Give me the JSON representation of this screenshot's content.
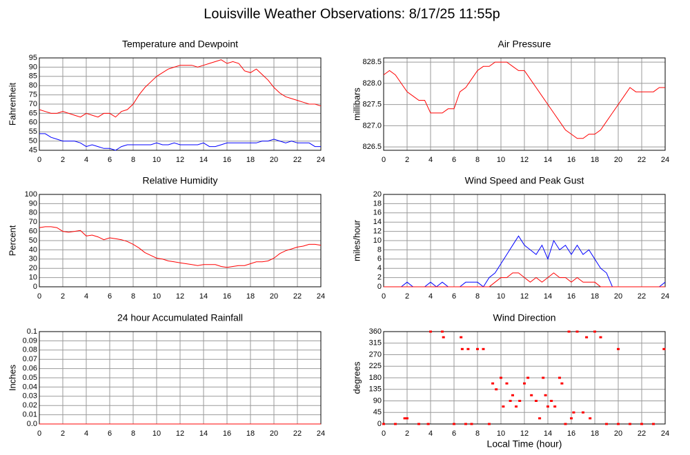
{
  "title": "Louisville Weather Observations: 8/17/25 11:55p",
  "x_label": "Local Time (hour)",
  "chart_data": [
    {
      "type": "line",
      "title": "Temperature and Dewpoint",
      "y_label": "Fahrenheit",
      "x": [
        0,
        0.5,
        1,
        1.5,
        2,
        2.5,
        3,
        3.5,
        4,
        4.5,
        5,
        5.5,
        6,
        6.5,
        7,
        7.5,
        8,
        8.5,
        9,
        9.5,
        10,
        10.5,
        11,
        11.5,
        12,
        12.5,
        13,
        13.5,
        14,
        14.5,
        15,
        15.5,
        16,
        16.5,
        17,
        17.5,
        18,
        18.5,
        19,
        19.5,
        20,
        20.5,
        21,
        21.5,
        22,
        22.5,
        23,
        23.5,
        24
      ],
      "series": [
        {
          "color": "#ff0000",
          "values": [
            67,
            66,
            65,
            65,
            66,
            65,
            64,
            63,
            65,
            64,
            63,
            65,
            65,
            63,
            66,
            67,
            70,
            75,
            79,
            82,
            85,
            87,
            89,
            90,
            91,
            91,
            91,
            90,
            91,
            92,
            93,
            94,
            92,
            93,
            92,
            88,
            87,
            89,
            86,
            83,
            79,
            76,
            74,
            73,
            72,
            71,
            70,
            70,
            69
          ]
        },
        {
          "color": "#0000ff",
          "values": [
            54,
            54,
            52,
            51,
            50,
            50,
            50,
            49,
            47,
            48,
            47,
            46,
            46,
            45,
            47,
            48,
            48,
            48,
            48,
            48,
            49,
            48,
            48,
            49,
            48,
            48,
            48,
            48,
            49,
            47,
            47,
            48,
            49,
            49,
            49,
            49,
            49,
            49,
            50,
            50,
            51,
            50,
            49,
            50,
            49,
            49,
            49,
            47,
            47
          ]
        }
      ],
      "xlim": [
        0,
        24
      ],
      "xticks": [
        0,
        2,
        4,
        6,
        8,
        10,
        12,
        14,
        16,
        18,
        20,
        22,
        24
      ],
      "ylim": [
        45,
        95
      ],
      "yticks": [
        45,
        50,
        55,
        60,
        65,
        70,
        75,
        80,
        85,
        90,
        95
      ],
      "grid": true
    },
    {
      "type": "line",
      "title": "Air Pressure",
      "y_label": "millibars",
      "x": [
        0,
        0.5,
        1,
        1.5,
        2,
        2.5,
        3,
        3.5,
        4,
        4.5,
        5,
        5.5,
        6,
        6.5,
        7,
        7.5,
        8,
        8.5,
        9,
        9.5,
        10,
        10.5,
        11,
        11.5,
        12,
        12.5,
        13,
        13.5,
        14,
        14.5,
        15,
        15.5,
        16,
        16.5,
        17,
        17.5,
        18,
        18.5,
        19,
        19.5,
        20,
        20.5,
        21,
        21.5,
        22,
        22.5,
        23,
        23.5,
        24
      ],
      "series": [
        {
          "color": "#ff0000",
          "values": [
            828.2,
            828.3,
            828.2,
            828.0,
            827.8,
            827.7,
            827.6,
            827.6,
            827.3,
            827.3,
            827.3,
            827.4,
            827.4,
            827.8,
            827.9,
            828.1,
            828.3,
            828.4,
            828.4,
            828.5,
            828.5,
            828.5,
            828.4,
            828.3,
            828.3,
            828.1,
            827.9,
            827.7,
            827.5,
            827.3,
            827.1,
            826.9,
            826.8,
            826.7,
            826.7,
            826.8,
            826.8,
            826.9,
            827.1,
            827.3,
            827.5,
            827.7,
            827.9,
            827.8,
            827.8,
            827.8,
            827.8,
            827.9,
            827.9
          ]
        }
      ],
      "xlim": [
        0,
        24
      ],
      "xticks": [
        0,
        2,
        4,
        6,
        8,
        10,
        12,
        14,
        16,
        18,
        20,
        22,
        24
      ],
      "ylim": [
        826.42,
        828.6
      ],
      "yticks": [
        826.5,
        {
          "value": 827,
          "label": "827.0"
        },
        827.5,
        {
          "value": 828,
          "label": "828.0"
        },
        828.5
      ],
      "grid": true
    },
    {
      "type": "line",
      "title": "Relative Humidity",
      "y_label": "Percent",
      "x": [
        0,
        0.5,
        1,
        1.5,
        2,
        2.5,
        3,
        3.5,
        4,
        4.5,
        5,
        5.5,
        6,
        6.5,
        7,
        7.5,
        8,
        8.5,
        9,
        9.5,
        10,
        10.5,
        11,
        11.5,
        12,
        12.5,
        13,
        13.5,
        14,
        14.5,
        15,
        15.5,
        16,
        16.5,
        17,
        17.5,
        18,
        18.5,
        19,
        19.5,
        20,
        20.5,
        21,
        21.5,
        22,
        22.5,
        23,
        23.5,
        24
      ],
      "series": [
        {
          "color": "#ff0000",
          "values": [
            64,
            65,
            65,
            64,
            60,
            59,
            60,
            61,
            55,
            56,
            54,
            51,
            53,
            52,
            51,
            49,
            46,
            42,
            37,
            34,
            31,
            30,
            28,
            27,
            26,
            25,
            24,
            23,
            24,
            24,
            24,
            22,
            21,
            22,
            23,
            23,
            25,
            27,
            27,
            28,
            31,
            36,
            39,
            41,
            43,
            44,
            46,
            46,
            45
          ]
        }
      ],
      "xlim": [
        0,
        24
      ],
      "xticks": [
        0,
        2,
        4,
        6,
        8,
        10,
        12,
        14,
        16,
        18,
        20,
        22,
        24
      ],
      "ylim": [
        0,
        100
      ],
      "yticks": [
        0,
        10,
        20,
        30,
        40,
        50,
        60,
        70,
        80,
        90,
        100
      ],
      "grid": true
    },
    {
      "type": "line",
      "title": "Wind Speed and Peak Gust",
      "y_label": "miles/hour",
      "x": [
        0,
        0.5,
        1,
        1.5,
        2,
        2.5,
        3,
        3.5,
        4,
        4.5,
        5,
        5.5,
        6,
        6.5,
        7,
        7.5,
        8,
        8.5,
        9,
        9.5,
        10,
        10.5,
        11,
        11.5,
        12,
        12.5,
        13,
        13.5,
        14,
        14.5,
        15,
        15.5,
        16,
        16.5,
        17,
        17.5,
        18,
        18.5,
        19,
        19.5,
        20,
        20.5,
        21,
        21.5,
        22,
        22.5,
        23,
        23.5,
        24
      ],
      "series": [
        {
          "color": "#0000ff",
          "values": [
            0,
            0,
            0,
            0,
            1,
            0,
            0,
            0,
            1,
            0,
            1,
            0,
            0,
            0,
            1,
            1,
            1,
            0,
            2,
            3,
            5,
            7,
            9,
            11,
            9,
            8,
            7,
            9,
            6,
            10,
            8,
            9,
            7,
            9,
            7,
            8,
            6,
            4,
            3,
            0,
            0,
            0,
            0,
            0,
            0,
            0,
            0,
            0,
            1
          ]
        },
        {
          "color": "#ff0000",
          "values": [
            0,
            0,
            0,
            0,
            0,
            0,
            0,
            0,
            0,
            0,
            0,
            0,
            0,
            0,
            0,
            0,
            0,
            0,
            0,
            1,
            2,
            2,
            3,
            3,
            2,
            1,
            2,
            1,
            2,
            3,
            2,
            2,
            1,
            2,
            1,
            1,
            1,
            0,
            0,
            0,
            0,
            0,
            0,
            0,
            0,
            0,
            0,
            0,
            0
          ]
        }
      ],
      "xlim": [
        0,
        24
      ],
      "xticks": [
        0,
        2,
        4,
        6,
        8,
        10,
        12,
        14,
        16,
        18,
        20,
        22,
        24
      ],
      "ylim": [
        0,
        20
      ],
      "yticks": [
        0,
        2,
        4,
        6,
        8,
        10,
        12,
        14,
        16,
        18,
        20
      ],
      "grid": true
    },
    {
      "type": "line",
      "title": "24 hour Accumulated Rainfall",
      "y_label": "Inches",
      "x": [
        0,
        24
      ],
      "series": [
        {
          "color": "#ff0000",
          "values": [
            0,
            0
          ]
        }
      ],
      "xlim": [
        0,
        24
      ],
      "xticks": [
        0,
        2,
        4,
        6,
        8,
        10,
        12,
        14,
        16,
        18,
        20,
        22,
        24
      ],
      "ylim": [
        0,
        0.1
      ],
      "yticks": [
        {
          "value": 0,
          "label": "0.0"
        },
        0.01,
        0.02,
        0.03,
        0.04,
        0.05,
        0.06,
        0.07,
        0.08,
        0.09,
        0.1
      ],
      "grid": true
    },
    {
      "type": "scatter",
      "title": "Wind Direction",
      "y_label": "degrees",
      "x": [
        0,
        1,
        1.8,
        2,
        3,
        3.8,
        4,
        5,
        5.1,
        6,
        6.6,
        6.7,
        7,
        7.2,
        7.5,
        8,
        8.5,
        9,
        9.3,
        9.6,
        10,
        10.2,
        10.5,
        10.8,
        11,
        11.3,
        11.6,
        12,
        12.3,
        12.6,
        13,
        13.3,
        13.6,
        13.8,
        14,
        14.3,
        14.6,
        15,
        15.2,
        15.5,
        15.8,
        16,
        16.2,
        16.5,
        17,
        17.3,
        17.6,
        18,
        18.5,
        19,
        20,
        20,
        21,
        22,
        23,
        23.9
      ],
      "series": [
        {
          "color": "#ff0000",
          "values": [
            0,
            0,
            22,
            22,
            0,
            0,
            360,
            360,
            338,
            0,
            338,
            292,
            0,
            292,
            0,
            292,
            292,
            0,
            158,
            135,
            180,
            68,
            158,
            90,
            112,
            68,
            90,
            158,
            180,
            112,
            90,
            22,
            180,
            112,
            68,
            90,
            68,
            180,
            158,
            0,
            360,
            22,
            45,
            360,
            45,
            338,
            22,
            360,
            338,
            0,
            0,
            292,
            0,
            0,
            0,
            292
          ]
        }
      ],
      "xlim": [
        0,
        24
      ],
      "xticks": [
        0,
        2,
        4,
        6,
        8,
        10,
        12,
        14,
        16,
        18,
        20,
        22,
        24
      ],
      "ylim": [
        0,
        360
      ],
      "yticks": [
        0,
        45,
        90,
        135,
        180,
        225,
        270,
        315,
        360
      ],
      "grid": true
    }
  ]
}
